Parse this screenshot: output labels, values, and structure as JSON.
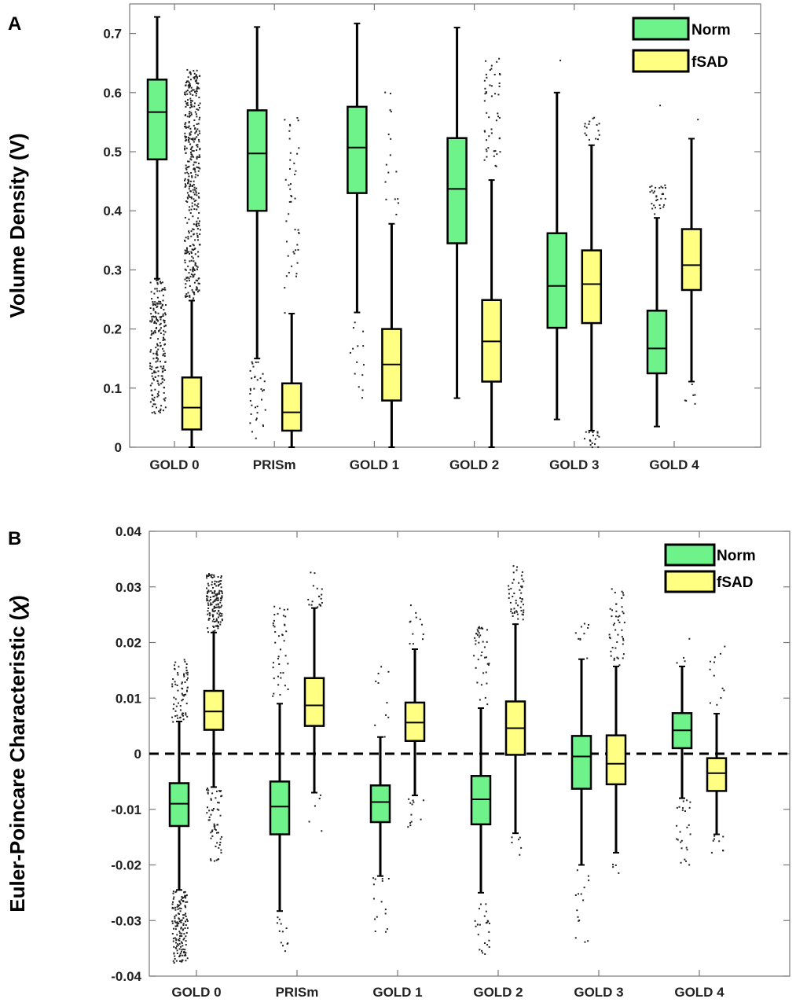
{
  "chart_data": [
    {
      "type": "box",
      "panel_label": "A",
      "ylabel": "Volume Density (V)",
      "ylim": [
        0,
        0.75
      ],
      "yticks": [
        0,
        0.1,
        0.2,
        0.3,
        0.4,
        0.5,
        0.6,
        0.7
      ],
      "ytick_labels": [
        "0",
        "0.1",
        "0.2",
        "0.3",
        "0.4",
        "0.5",
        "0.6",
        "0.7"
      ],
      "categories": [
        "GOLD 0",
        "PRISm",
        "GOLD 1",
        "GOLD 2",
        "GOLD 3",
        "GOLD 4"
      ],
      "legend_position": "top-right",
      "reference_line": null,
      "series": [
        {
          "name": "Norm",
          "color": "#6ef28a",
          "boxes": [
            {
              "whislo": 0.285,
              "q1": 0.487,
              "med": 0.567,
              "q3": 0.622,
              "whishi": 0.728,
              "outlier_ranges": [
                [
                  0.055,
                  0.285,
                  220
                ]
              ]
            },
            {
              "whislo": 0.15,
              "q1": 0.4,
              "med": 0.497,
              "q3": 0.57,
              "whishi": 0.711,
              "outlier_ranges": [
                [
                  0.015,
                  0.15,
                  35
                ]
              ]
            },
            {
              "whislo": 0.228,
              "q1": 0.43,
              "med": 0.507,
              "q3": 0.576,
              "whishi": 0.717,
              "outlier_ranges": [
                [
                  0.07,
                  0.225,
                  14
                ]
              ]
            },
            {
              "whislo": 0.083,
              "q1": 0.345,
              "med": 0.437,
              "q3": 0.523,
              "whishi": 0.71,
              "outlier_ranges": []
            },
            {
              "whislo": 0.047,
              "q1": 0.202,
              "med": 0.273,
              "q3": 0.362,
              "whishi": 0.6,
              "outlier_ranges": [
                [
                  0.655,
                  0.66,
                  1
                ]
              ]
            },
            {
              "whislo": 0.035,
              "q1": 0.125,
              "med": 0.167,
              "q3": 0.231,
              "whishi": 0.388,
              "outlier_ranges": [
                [
                  0.395,
                  0.445,
                  30
                ],
                [
                  0.575,
                  0.58,
                  1
                ]
              ]
            }
          ]
        },
        {
          "name": "fSAD",
          "color": "#ffff82",
          "boxes": [
            {
              "whislo": 0.0,
              "q1": 0.03,
              "med": 0.067,
              "q3": 0.118,
              "whishi": 0.248,
              "outlier_ranges": [
                [
                  0.248,
                  0.64,
                  420
                ]
              ]
            },
            {
              "whislo": 0.0,
              "q1": 0.028,
              "med": 0.059,
              "q3": 0.108,
              "whishi": 0.226,
              "outlier_ranges": [
                [
                  0.226,
                  0.56,
                  45
                ]
              ]
            },
            {
              "whislo": 0.0,
              "q1": 0.079,
              "med": 0.14,
              "q3": 0.2,
              "whishi": 0.378,
              "outlier_ranges": [
                [
                  0.38,
                  0.625,
                  16
                ]
              ]
            },
            {
              "whislo": 0.0,
              "q1": 0.111,
              "med": 0.179,
              "q3": 0.249,
              "whishi": 0.452,
              "outlier_ranges": [
                [
                  0.46,
                  0.665,
                  50
                ]
              ]
            },
            {
              "whislo": 0.028,
              "q1": 0.21,
              "med": 0.276,
              "q3": 0.333,
              "whishi": 0.511,
              "outlier_ranges": [
                [
                  0.0,
                  0.028,
                  18
                ],
                [
                  0.515,
                  0.56,
                  16
                ]
              ]
            },
            {
              "whislo": 0.111,
              "q1": 0.266,
              "med": 0.308,
              "q3": 0.369,
              "whishi": 0.522,
              "outlier_ranges": [
                [
                  0.06,
                  0.11,
                  6
                ],
                [
                  0.553,
                  0.556,
                  1
                ]
              ]
            }
          ]
        }
      ]
    },
    {
      "type": "box",
      "panel_label": "B",
      "ylabel": "Euler-Poincare Characteristic (𝜒)",
      "ylim": [
        -0.04,
        0.04
      ],
      "yticks": [
        -0.04,
        -0.03,
        -0.02,
        -0.01,
        0,
        0.01,
        0.02,
        0.03,
        0.04
      ],
      "ytick_labels": [
        "-0.04",
        "-0.03",
        "-0.02",
        "-0.01",
        "0",
        "0.01",
        "0.02",
        "0.03",
        "0.04"
      ],
      "categories": [
        "GOLD 0",
        "PRISm",
        "GOLD 1",
        "GOLD 2",
        "GOLD 3",
        "GOLD 4"
      ],
      "legend_position": "top-right",
      "reference_line": 0,
      "series": [
        {
          "name": "Norm",
          "color": "#6ef28a",
          "boxes": [
            {
              "whislo": -0.0245,
              "q1": -0.013,
              "med": -0.009,
              "q3": -0.0053,
              "whishi": 0.0058,
              "outlier_ranges": [
                [
                  -0.0375,
                  -0.0245,
                  160
                ],
                [
                  0.0058,
                  0.0172,
                  70
                ]
              ]
            },
            {
              "whislo": -0.0283,
              "q1": -0.0145,
              "med": -0.0095,
              "q3": -0.005,
              "whishi": 0.009,
              "outlier_ranges": [
                [
                  -0.0355,
                  -0.029,
                  12
                ],
                [
                  0.009,
                  0.0268,
                  40
                ]
              ]
            },
            {
              "whislo": -0.022,
              "q1": -0.0123,
              "med": -0.0087,
              "q3": -0.0057,
              "whishi": 0.003,
              "outlier_ranges": [
                [
                  -0.033,
                  -0.022,
                  15
                ],
                [
                  0.003,
                  0.0165,
                  10
                ]
              ]
            },
            {
              "whislo": -0.025,
              "q1": -0.0127,
              "med": -0.0082,
              "q3": -0.004,
              "whishi": 0.0082,
              "outlier_ranges": [
                [
                  -0.037,
                  -0.025,
                  25
                ],
                [
                  0.0085,
                  0.023,
                  40
                ]
              ]
            },
            {
              "whislo": -0.02,
              "q1": -0.0063,
              "med": -0.0005,
              "q3": 0.0032,
              "whishi": 0.017,
              "outlier_ranges": [
                [
                  -0.0355,
                  -0.02,
                  15
                ],
                [
                  0.017,
                  0.024,
                  10
                ]
              ]
            },
            {
              "whislo": -0.008,
              "q1": 0.001,
              "med": 0.0042,
              "q3": 0.0073,
              "whishi": 0.0157,
              "outlier_ranges": [
                [
                  -0.0205,
                  -0.008,
                  25
                ],
                [
                  0.016,
                  0.021,
                  4
                ]
              ]
            }
          ]
        },
        {
          "name": "fSAD",
          "color": "#ffff82",
          "boxes": [
            {
              "whislo": -0.006,
              "q1": 0.0043,
              "med": 0.0076,
              "q3": 0.0113,
              "whishi": 0.0218,
              "outlier_ranges": [
                [
                  -0.0195,
                  -0.006,
                  60
                ],
                [
                  0.0218,
                  0.0325,
                  150
                ]
              ]
            },
            {
              "whislo": -0.007,
              "q1": 0.005,
              "med": 0.0087,
              "q3": 0.0136,
              "whishi": 0.0262,
              "outlier_ranges": [
                [
                  -0.014,
                  -0.007,
                  5
                ],
                [
                  0.0265,
                  0.0332,
                  18
                ]
              ]
            },
            {
              "whislo": -0.0075,
              "q1": 0.0023,
              "med": 0.0056,
              "q3": 0.0092,
              "whishi": 0.0188,
              "outlier_ranges": [
                [
                  -0.0135,
                  -0.0075,
                  12
                ],
                [
                  0.019,
                  0.027,
                  12
                ]
              ]
            },
            {
              "whislo": -0.0143,
              "q1": -0.0002,
              "med": 0.0046,
              "q3": 0.0094,
              "whishi": 0.0233,
              "outlier_ranges": [
                [
                  -0.0195,
                  -0.0145,
                  6
                ],
                [
                  0.0235,
                  0.0342,
                  50
                ]
              ]
            },
            {
              "whislo": -0.0178,
              "q1": -0.0055,
              "med": -0.0018,
              "q3": 0.0033,
              "whishi": 0.0157,
              "outlier_ranges": [
                [
                  -0.0215,
                  -0.018,
                  4
                ],
                [
                  0.016,
                  0.0298,
                  45
                ]
              ]
            },
            {
              "whislo": -0.0145,
              "q1": -0.0067,
              "med": -0.0035,
              "q3": -0.0008,
              "whishi": 0.0072,
              "outlier_ranges": [
                [
                  -0.019,
                  -0.0145,
                  8
                ],
                [
                  0.0075,
                  0.0205,
                  12
                ]
              ]
            }
          ]
        }
      ]
    }
  ]
}
